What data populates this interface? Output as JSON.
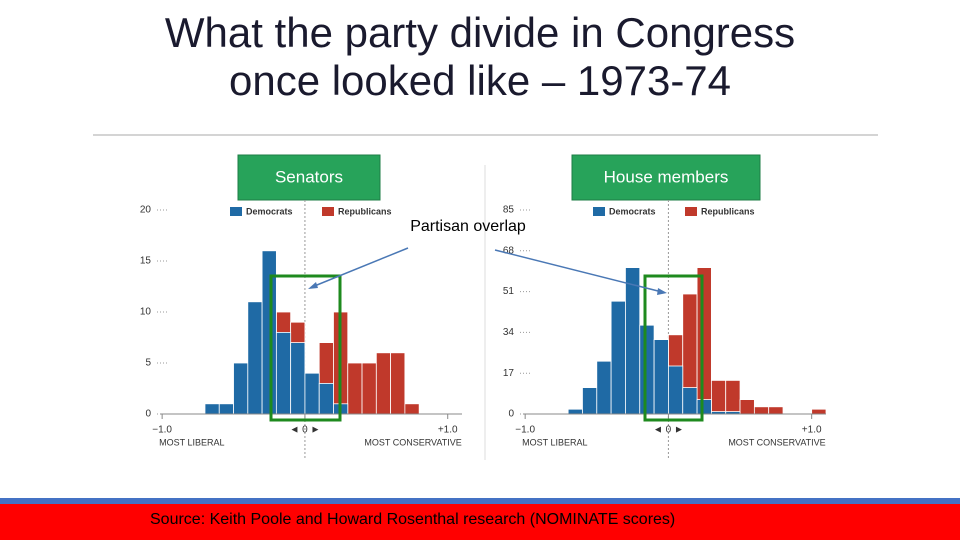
{
  "title": "What the party divide in Congress once looked like – 1973-74",
  "annotation": "Partisan overlap",
  "source": "Source: Keith Poole and Howard Rosenthal  research (NOMINATE scores)",
  "chart_data": [
    {
      "type": "histogram",
      "title": "Senators",
      "bins": [
        -0.7,
        -0.6,
        -0.5,
        -0.4,
        -0.3,
        -0.2,
        -0.1,
        0,
        0.1,
        0.2,
        0.3,
        0.4,
        0.5,
        0.6,
        0.7,
        0.8
      ],
      "series": [
        {
          "name": "Republicans",
          "color": "#c0392b",
          "values": [
            0,
            0,
            0,
            0,
            0,
            10,
            9,
            4,
            7,
            10,
            5,
            5,
            6,
            6,
            1
          ]
        },
        {
          "name": "Democrats",
          "color": "#1f6aa5",
          "values": [
            1,
            1,
            5,
            11,
            16,
            8,
            7,
            4,
            3,
            1,
            0,
            0,
            0,
            0,
            0
          ]
        }
      ],
      "xlim": [
        -1.05,
        1.1
      ],
      "xticks": [
        {
          "value": -1,
          "label": "−1.0"
        },
        {
          "value": 0,
          "label": "◄ 0 ►"
        },
        {
          "value": 1,
          "label": "+1.0"
        }
      ],
      "xlabel_left": "MOST LIBERAL",
      "xlabel_right": "MOST CONSERVATIVE",
      "ylim": [
        0,
        20
      ],
      "yticks": [
        0,
        5,
        10,
        15,
        20
      ]
    },
    {
      "type": "histogram",
      "title": "House members",
      "bins": [
        -0.7,
        -0.6,
        -0.5,
        -0.4,
        -0.3,
        -0.2,
        -0.1,
        0,
        0.1,
        0.2,
        0.3,
        0.4,
        0.5,
        0.6,
        0.7,
        0.8,
        0.9,
        1.0,
        1.1
      ],
      "series": [
        {
          "name": "Republicans",
          "color": "#c0392b",
          "values": [
            0,
            0,
            0,
            0,
            0,
            0,
            31,
            33,
            50,
            61,
            14,
            14,
            6,
            3,
            3,
            0,
            0,
            2
          ]
        },
        {
          "name": "Democrats",
          "color": "#1f6aa5",
          "values": [
            2,
            11,
            22,
            47,
            61,
            37,
            31,
            20,
            11,
            6,
            1,
            1,
            0,
            0,
            0,
            0,
            0,
            0
          ]
        }
      ],
      "xlim": [
        -1.05,
        1.1
      ],
      "xticks": [
        {
          "value": -1,
          "label": "−1.0"
        },
        {
          "value": 0,
          "label": "◄ 0 ►"
        },
        {
          "value": 1,
          "label": "+1.0"
        }
      ],
      "xlabel_left": "MOST LIBERAL",
      "xlabel_right": "MOST CONSERVATIVE",
      "ylim": [
        0,
        85
      ],
      "yticks": [
        0,
        17,
        34,
        51,
        68,
        85
      ]
    }
  ]
}
